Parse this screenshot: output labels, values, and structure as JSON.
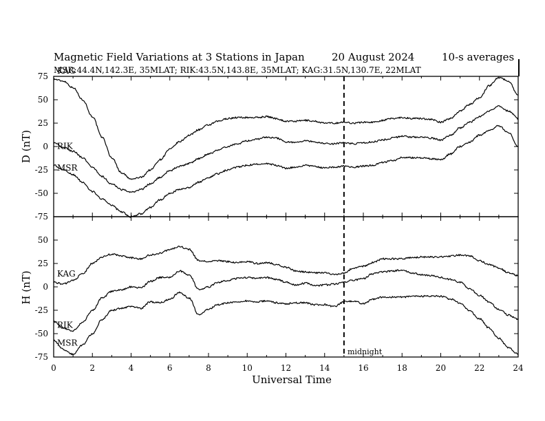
{
  "chart_data": {
    "type": "line",
    "title": "Magnetic Field Variations at 3 Stations in Japan",
    "date": "20  August  2024",
    "averaging": "10-s averages",
    "subtitle": "MSR:44.4N,142.3E, 35MLAT;  RIK:43.5N,143.8E, 35MLAT;  KAG:31.5N,130.7E, 22MLAT",
    "xlabel": "Universal Time",
    "xlim": [
      0,
      24
    ],
    "xticks": [
      "0",
      "2",
      "4",
      "6",
      "8",
      "10",
      "12",
      "14",
      "16",
      "18",
      "20",
      "22",
      "24"
    ],
    "midnight_ut": 15,
    "midnight_label": "midnight",
    "panels": [
      {
        "ylabel": "D (nT)",
        "ylim": [
          -75,
          75
        ],
        "yticks": [
          "75",
          "50",
          "25",
          "0",
          "-25",
          "-50",
          "-75"
        ],
        "series": [
          {
            "name": "KAG",
            "x": [
              0,
              0.5,
              1,
              1.5,
              2,
              2.5,
              3,
              3.5,
              4,
              4.5,
              5,
              5.5,
              6,
              6.5,
              7,
              7.5,
              8,
              8.5,
              9,
              9.5,
              10,
              10.5,
              11,
              11.5,
              12,
              12.5,
              13,
              13.5,
              14,
              14.5,
              15,
              15.5,
              16,
              16.5,
              17,
              17.5,
              18,
              18.5,
              19,
              19.5,
              20,
              20.5,
              21,
              21.5,
              22,
              22.5,
              23,
              23.5,
              24
            ],
            "values": [
              72,
              70,
              63,
              50,
              32,
              10,
              -12,
              -28,
              -35,
              -33,
              -25,
              -14,
              -3,
              5,
              12,
              18,
              23,
              27,
              30,
              31,
              31,
              31,
              32,
              30,
              27,
              27,
              28,
              27,
              25,
              25,
              26,
              25,
              26,
              26,
              28,
              30,
              31,
              30,
              30,
              29,
              26,
              30,
              38,
              45,
              52,
              65,
              74,
              70,
              55
            ]
          },
          {
            "name": "RIK",
            "x": [
              0,
              0.5,
              1,
              1.5,
              2,
              2.5,
              3,
              3.5,
              4,
              4.5,
              5,
              5.5,
              6,
              6.5,
              7,
              7.5,
              8,
              8.5,
              9,
              9.5,
              10,
              10.5,
              11,
              11.5,
              12,
              12.5,
              13,
              13.5,
              14,
              14.5,
              15,
              15.5,
              16,
              16.5,
              17,
              17.5,
              18,
              18.5,
              19,
              19.5,
              20,
              20.5,
              21,
              21.5,
              22,
              22.5,
              23,
              23.5,
              24
            ],
            "values": [
              4,
              -1,
              -5,
              -12,
              -22,
              -32,
              -40,
              -46,
              -49,
              -46,
              -40,
              -33,
              -26,
              -21,
              -18,
              -13,
              -8,
              -4,
              0,
              3,
              6,
              8,
              10,
              9,
              5,
              4,
              6,
              5,
              3,
              3,
              4,
              3,
              4,
              5,
              7,
              9,
              11,
              10,
              10,
              9,
              7,
              12,
              20,
              26,
              32,
              38,
              43,
              38,
              30
            ]
          },
          {
            "name": "MSR",
            "x": [
              0,
              0.5,
              1,
              1.5,
              2,
              2.5,
              3,
              3.5,
              4,
              4.5,
              5,
              5.5,
              6,
              6.5,
              7,
              7.5,
              8,
              8.5,
              9,
              9.5,
              10,
              10.5,
              11,
              11.5,
              12,
              12.5,
              13,
              13.5,
              14,
              14.5,
              15,
              15.5,
              16,
              16.5,
              17,
              17.5,
              18,
              18.5,
              19,
              19.5,
              20,
              20.5,
              21,
              21.5,
              22,
              22.5,
              23,
              23.5,
              24
            ],
            "values": [
              -20,
              -25,
              -30,
              -38,
              -48,
              -56,
              -63,
              -70,
              -75,
              -72,
              -65,
              -57,
              -50,
              -46,
              -44,
              -38,
              -33,
              -29,
              -25,
              -22,
              -20,
              -19,
              -18,
              -20,
              -23,
              -22,
              -20,
              -21,
              -23,
              -22,
              -21,
              -22,
              -21,
              -20,
              -17,
              -15,
              -12,
              -12,
              -12,
              -13,
              -14,
              -8,
              0,
              5,
              12,
              17,
              22,
              15,
              0
            ]
          }
        ]
      },
      {
        "ylabel": "H (nT)",
        "ylim": [
          -75,
          75
        ],
        "yticks": [
          "50",
          "25",
          "0",
          "-25",
          "-50",
          "-75"
        ],
        "series": [
          {
            "name": "KAG",
            "x": [
              0,
              0.5,
              1,
              1.5,
              2,
              2.5,
              3,
              3.5,
              4,
              4.5,
              5,
              5.5,
              6,
              6.5,
              7,
              7.5,
              8,
              8.5,
              9,
              9.5,
              10,
              10.5,
              11,
              11.5,
              12,
              12.5,
              13,
              13.5,
              14,
              14.5,
              15,
              15.5,
              16,
              16.5,
              17,
              17.5,
              18,
              18.5,
              19,
              19.5,
              20,
              20.5,
              21,
              21.5,
              22,
              22.5,
              23,
              23.5,
              24
            ],
            "values": [
              5,
              3,
              7,
              14,
              25,
              32,
              35,
              33,
              31,
              30,
              34,
              36,
              40,
              43,
              40,
              28,
              27,
              28,
              27,
              26,
              27,
              25,
              26,
              24,
              21,
              17,
              16,
              15,
              15,
              13,
              15,
              20,
              22,
              26,
              30,
              30,
              30,
              31,
              32,
              32,
              32,
              33,
              34,
              33,
              28,
              24,
              20,
              15,
              12
            ]
          },
          {
            "name": "RIK",
            "x": [
              0,
              0.5,
              1,
              1.5,
              2,
              2.5,
              3,
              3.5,
              4,
              4.5,
              5,
              5.5,
              6,
              6.5,
              7,
              7.5,
              8,
              8.5,
              9,
              9.5,
              10,
              10.5,
              11,
              11.5,
              12,
              12.5,
              13,
              13.5,
              14,
              14.5,
              15,
              15.5,
              16,
              16.5,
              17,
              17.5,
              18,
              18.5,
              19,
              19.5,
              20,
              20.5,
              21,
              21.5,
              22,
              22.5,
              23,
              23.5,
              24
            ],
            "values": [
              -37,
              -44,
              -47,
              -38,
              -25,
              -12,
              -5,
              -3,
              0,
              -1,
              6,
              10,
              10,
              17,
              13,
              -3,
              0,
              5,
              7,
              9,
              10,
              9,
              10,
              8,
              5,
              2,
              4,
              1,
              2,
              3,
              5,
              7,
              9,
              14,
              16,
              17,
              18,
              15,
              13,
              12,
              10,
              8,
              5,
              -2,
              -9,
              -16,
              -24,
              -30,
              -35
            ]
          },
          {
            "name": "MSR",
            "x": [
              0,
              0.5,
              1,
              1.5,
              2,
              2.5,
              3,
              3.5,
              4,
              4.5,
              5,
              5.5,
              6,
              6.5,
              7,
              7.5,
              8,
              8.5,
              9,
              9.5,
              10,
              10.5,
              11,
              11.5,
              12,
              12.5,
              13,
              13.5,
              14,
              14.5,
              15,
              15.5,
              16,
              16.5,
              17,
              17.5,
              18,
              18.5,
              19,
              19.5,
              20,
              20.5,
              21,
              21.5,
              22,
              22.5,
              23,
              23.5,
              24
            ],
            "values": [
              -57,
              -67,
              -72,
              -62,
              -50,
              -35,
              -25,
              -23,
              -21,
              -23,
              -16,
              -17,
              -13,
              -6,
              -12,
              -30,
              -24,
              -19,
              -17,
              -16,
              -15,
              -16,
              -15,
              -17,
              -18,
              -17,
              -17,
              -19,
              -19,
              -21,
              -16,
              -15,
              -18,
              -13,
              -11,
              -11,
              -11,
              -10,
              -10,
              -10,
              -10,
              -13,
              -17,
              -26,
              -34,
              -44,
              -55,
              -65,
              -72
            ]
          }
        ]
      }
    ]
  }
}
